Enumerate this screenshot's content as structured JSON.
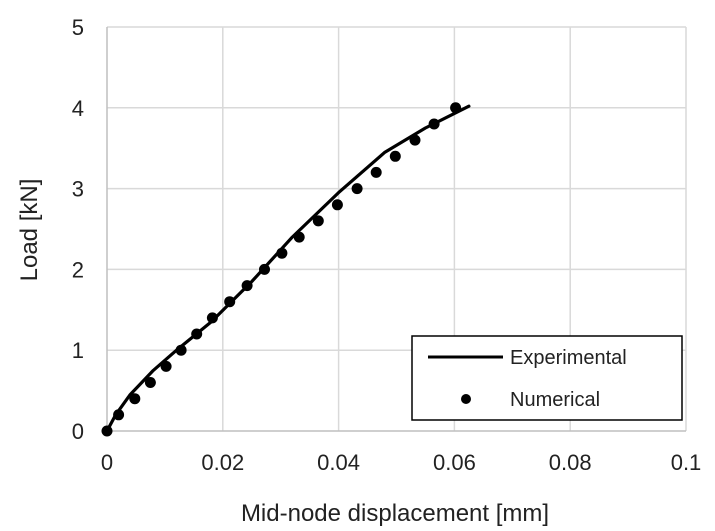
{
  "chart_data": {
    "type": "line",
    "title": "",
    "xlabel": "Mid-node displacement [mm]",
    "ylabel": "Load [kN]",
    "xlim": [
      0,
      0.1
    ],
    "ylim": [
      0,
      5
    ],
    "x_ticks": [
      0,
      0.02,
      0.04,
      0.06,
      0.08,
      0.1
    ],
    "x_tick_labels": [
      "0",
      "0.02",
      "0.04",
      "0.06",
      "0.08",
      "0.1"
    ],
    "y_ticks": [
      0,
      1,
      2,
      3,
      4,
      5
    ],
    "y_tick_labels": [
      "0",
      "1",
      "2",
      "3",
      "4",
      "5"
    ],
    "grid": true,
    "legend_position": "bottom-right",
    "colors": {
      "series": "#000000",
      "grid": "#d9d9d9"
    },
    "series": [
      {
        "name": "Experimental",
        "type": "line",
        "x": [
          0,
          0.0015,
          0.004,
          0.008,
          0.012,
          0.018,
          0.025,
          0.032,
          0.04,
          0.048,
          0.055,
          0.0625
        ],
        "y": [
          0,
          0.2,
          0.45,
          0.75,
          1.0,
          1.35,
          1.85,
          2.4,
          2.95,
          3.45,
          3.75,
          4.02
        ]
      },
      {
        "name": "Numerical",
        "type": "scatter",
        "x": [
          0,
          0.002,
          0.0048,
          0.0075,
          0.0102,
          0.0128,
          0.0155,
          0.0182,
          0.0212,
          0.0242,
          0.0272,
          0.0302,
          0.0332,
          0.0365,
          0.0398,
          0.0432,
          0.0465,
          0.0498,
          0.0532,
          0.0565,
          0.0602
        ],
        "y": [
          0,
          0.2,
          0.4,
          0.6,
          0.8,
          1.0,
          1.2,
          1.4,
          1.6,
          1.8,
          2.0,
          2.2,
          2.4,
          2.6,
          2.8,
          3.0,
          3.2,
          3.4,
          3.6,
          3.8,
          4.0
        ]
      }
    ]
  }
}
